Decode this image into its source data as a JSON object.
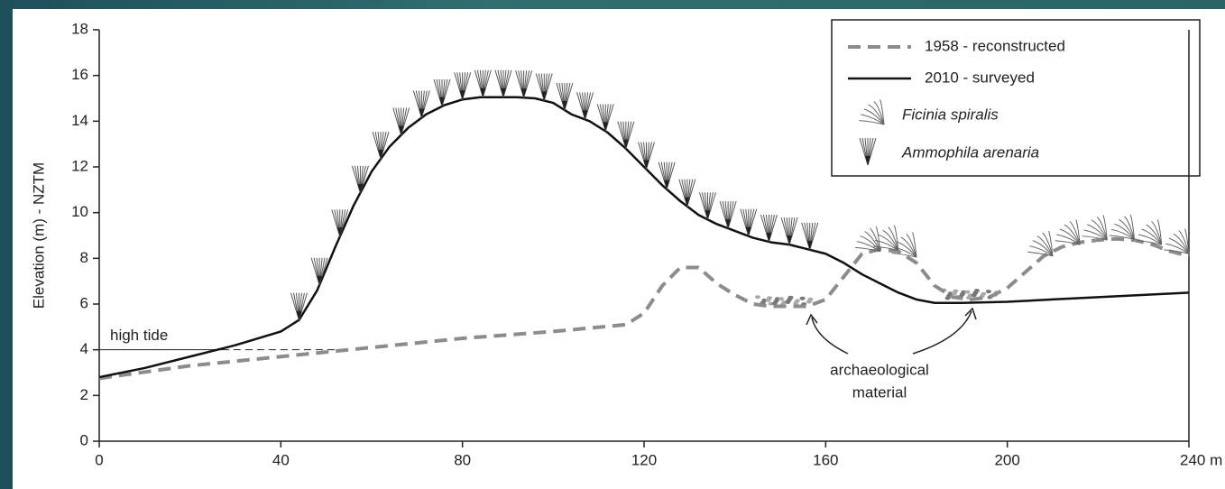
{
  "chart_data": {
    "type": "line",
    "ylabel": "Elevation (m) - NZTM",
    "xlim": [
      0,
      240
    ],
    "ylim": [
      0,
      18
    ],
    "xticks": [
      0,
      40,
      80,
      120,
      160,
      200,
      {
        "value": 240,
        "label": "240 m"
      }
    ],
    "yticks": [
      0,
      2,
      4,
      6,
      8,
      10,
      12,
      14,
      16,
      18
    ],
    "series": [
      {
        "name": "1958 - reconstructed",
        "color": "#8c8c8c",
        "style": "dashed",
        "x": [
          0,
          20,
          40,
          60,
          80,
          100,
          116,
          120,
          124,
          128,
          132,
          136,
          140,
          144,
          148,
          152,
          156,
          160,
          164,
          168,
          172,
          176,
          180,
          184,
          188,
          192,
          196,
          200,
          204,
          208,
          212,
          216,
          220,
          224,
          228,
          232,
          236,
          240
        ],
        "values": [
          2.75,
          3.3,
          3.7,
          4.1,
          4.5,
          4.8,
          5.1,
          5.6,
          6.8,
          7.6,
          7.6,
          6.9,
          6.4,
          6.0,
          5.9,
          5.9,
          5.9,
          6.2,
          7.2,
          8.2,
          8.4,
          8.3,
          7.8,
          6.8,
          6.3,
          6.2,
          6.3,
          6.7,
          7.4,
          8.1,
          8.5,
          8.7,
          8.8,
          8.85,
          8.8,
          8.6,
          8.3,
          8.1
        ]
      },
      {
        "name": "2010 - surveyed",
        "color": "#111111",
        "style": "solid",
        "x": [
          0,
          10,
          20,
          30,
          40,
          44,
          48,
          52,
          56,
          60,
          64,
          68,
          72,
          76,
          80,
          84,
          88,
          92,
          96,
          100,
          104,
          108,
          112,
          116,
          120,
          124,
          128,
          132,
          136,
          140,
          144,
          148,
          152,
          156,
          160,
          164,
          168,
          172,
          176,
          180,
          184,
          190,
          200,
          210,
          220,
          230,
          240
        ],
        "values": [
          2.8,
          3.2,
          3.7,
          4.2,
          4.8,
          5.3,
          6.6,
          8.5,
          10.3,
          11.8,
          12.9,
          13.7,
          14.3,
          14.7,
          14.95,
          15.05,
          15.05,
          15.05,
          15.0,
          14.8,
          14.3,
          14.0,
          13.5,
          12.8,
          12.0,
          11.2,
          10.5,
          9.9,
          9.5,
          9.2,
          8.9,
          8.7,
          8.6,
          8.4,
          8.2,
          7.8,
          7.3,
          6.9,
          6.5,
          6.2,
          6.05,
          6.05,
          6.1,
          6.2,
          6.3,
          6.4,
          6.5
        ]
      }
    ],
    "legend_symbols": [
      "Ficinia spiralis",
      "Ammophila arenaria"
    ],
    "high_tide": {
      "label": "high tide",
      "value": 4
    },
    "annotation": [
      "archaeological",
      "material"
    ]
  }
}
